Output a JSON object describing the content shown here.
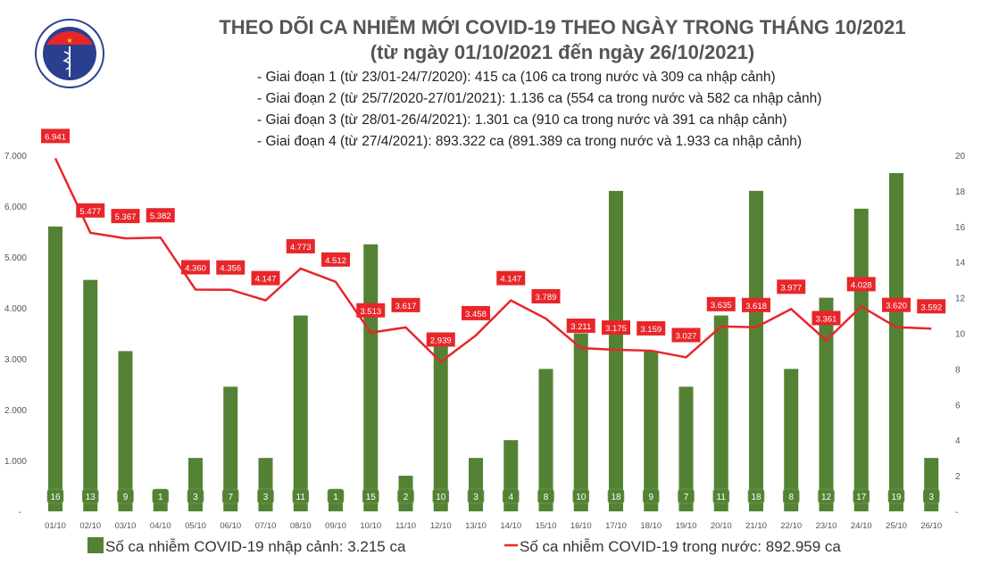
{
  "header": {
    "title": "THEO DÕI CA NHIỄM MỚI COVID-19 THEO NGÀY TRONG THÁNG 10/2021",
    "subtitle": "(từ ngày 01/10/2021 đến ngày 26/10/2021)",
    "stages": [
      "- Giai đoạn 1 (từ 23/01-24/7/2020): 415 ca (106 ca trong nước và 309 ca nhập cảnh)",
      "- Giai đoạn 2 (từ 25/7/2020-27/01/2021): 1.136 ca (554 ca trong nước và 582 ca nhập cảnh)",
      "- Giai đoạn 3 (từ 28/01-26/4/2021): 1.301 ca (910 ca trong nước và 391 ca nhập cảnh)",
      "- Giai đoạn 4 (từ 27/4/2021): 893.322 ca (891.389 ca trong nước và 1.933 ca nhập cảnh)"
    ],
    "logo_text": "BỘ Y TẾ · MINISTRY OF HEALTH"
  },
  "chart_data": {
    "type": "bar+line",
    "categories": [
      "01/10",
      "02/10",
      "03/10",
      "04/10",
      "05/10",
      "06/10",
      "07/10",
      "08/10",
      "09/10",
      "10/10",
      "11/10",
      "12/10",
      "13/10",
      "14/10",
      "15/10",
      "16/10",
      "17/10",
      "18/10",
      "19/10",
      "20/10",
      "21/10",
      "22/10",
      "23/10",
      "24/10",
      "25/10",
      "26/10"
    ],
    "series": [
      {
        "name": "Số ca nhiễm COVID-19 nhập cảnh: 3.215 ca",
        "type": "bar",
        "axis": "right",
        "color": "#548235",
        "values": [
          16,
          13,
          9,
          1,
          3,
          7,
          3,
          11,
          1,
          15,
          2,
          10,
          3,
          4,
          8,
          10,
          18,
          9,
          7,
          11,
          18,
          8,
          12,
          17,
          19,
          3
        ]
      },
      {
        "name": "Số ca nhiễm COVID-19 trong nước: 892.959 ca",
        "type": "line",
        "axis": "left",
        "color": "#e8262a",
        "values": [
          6941,
          5477,
          5367,
          5382,
          4360,
          4356,
          4147,
          4773,
          4512,
          3513,
          3617,
          2939,
          3458,
          4147,
          3789,
          3211,
          3175,
          3159,
          3027,
          3635,
          3618,
          3977,
          3361,
          4028,
          3620,
          3592
        ]
      }
    ],
    "left_axis": {
      "ylim": [
        0,
        7000
      ],
      "tick_labels": [
        "-",
        "1.000",
        "2.000",
        "3.000",
        "4.000",
        "5.000",
        "6.000",
        "7.000"
      ]
    },
    "right_axis": {
      "ylim": [
        0,
        20
      ],
      "tick_labels": [
        "-",
        "2",
        "4",
        "6",
        "8",
        "10",
        "12",
        "14",
        "16",
        "18",
        "20"
      ]
    },
    "line_labels": [
      "6.941",
      "5.477",
      "5.367",
      "5.382",
      "4.360",
      "4.356",
      "4.147",
      "4.773",
      "4.512",
      "3.513",
      "3.617",
      "2.939",
      "3.458",
      "4.147",
      "3.789",
      "3.211",
      "3.175",
      "3.159",
      "3.027",
      "3.635",
      "3.618",
      "3.977",
      "3.361",
      "4.028",
      "3.620",
      "3.592"
    ],
    "legend_placement": "bottom",
    "grid": false
  }
}
